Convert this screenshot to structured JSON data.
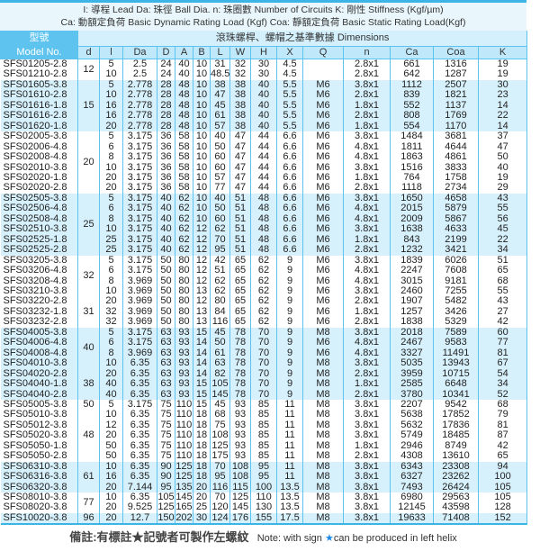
{
  "legend": {
    "line1": "I: 導程  Lead    Da: 珠徑  Ball Dia.   n: 珠圈數  Number of Circuits    K: 剛性  Stiffness (Kgf/µm)",
    "line2": "Ca: 動額定負荷  Basic Dynamic Rating Load (Kgf)    Coa: 靜額定負荷  Basic Static Rating Load(Kgf)"
  },
  "header": {
    "model_zh": "型號",
    "model_en": "Model No.",
    "dimensions": "滾珠螺桿、螺帽之基準數據  Dimensions",
    "columns": [
      "d",
      "l",
      "Da",
      "D",
      "A",
      "B",
      "L",
      "W",
      "H",
      "X",
      "Q",
      "n",
      "Ca",
      "Coa",
      "K"
    ]
  },
  "colors": {
    "border": "#5cc3ee",
    "highlight": "#d7f1fc",
    "model_header": "#5ec4ef"
  },
  "groups": [
    {
      "d": "12",
      "highlight": false,
      "rows": [
        [
          "SFS01205-2.8",
          "5",
          "2.5",
          "24",
          "40",
          "10",
          "31",
          "32",
          "30",
          "4.5",
          "",
          "2.8x1",
          "661",
          "1316",
          "19"
        ],
        [
          "SFS01210-2.8",
          "10",
          "2.5",
          "24",
          "40",
          "10",
          "48.5",
          "32",
          "30",
          "4.5",
          "",
          "2.8x1",
          "642",
          "1287",
          "19"
        ]
      ]
    },
    {
      "d": "15",
      "highlight": true,
      "rows": [
        [
          "SFS01605-3.8",
          "5",
          "2.778",
          "28",
          "48",
          "10",
          "38",
          "38",
          "40",
          "5.5",
          "M6",
          "3.8x1",
          "1112",
          "2507",
          "30"
        ],
        [
          "SFS01610-2.8",
          "10",
          "2.778",
          "28",
          "48",
          "10",
          "47",
          "38",
          "40",
          "5.5",
          "M6",
          "2.8x1",
          "839",
          "1821",
          "23"
        ],
        [
          "SFS01616-1.8",
          "16",
          "2.778",
          "28",
          "48",
          "10",
          "45",
          "38",
          "40",
          "5.5",
          "M6",
          "1.8x1",
          "552",
          "1137",
          "14"
        ],
        [
          "SFS01616-2.8",
          "16",
          "2.778",
          "28",
          "48",
          "10",
          "61",
          "38",
          "40",
          "5.5",
          "M6",
          "2.8x1",
          "808",
          "1769",
          "22"
        ],
        [
          "SFS01620-1.8",
          "20",
          "2.778",
          "28",
          "48",
          "10",
          "57",
          "38",
          "40",
          "5.5",
          "M6",
          "1.8x1",
          "554",
          "1170",
          "14"
        ]
      ]
    },
    {
      "d": "20",
      "highlight": false,
      "rows": [
        [
          "SFS02005-3.8",
          "5",
          "3.175",
          "36",
          "58",
          "10",
          "40",
          "47",
          "44",
          "6.6",
          "M6",
          "3.8x1",
          "1484",
          "3681",
          "37"
        ],
        [
          "SFS02006-4.8",
          "6",
          "3.175",
          "36",
          "58",
          "10",
          "50",
          "47",
          "44",
          "6.6",
          "M6",
          "4.8x1",
          "1811",
          "4644",
          "47"
        ],
        [
          "SFS02008-4.8",
          "8",
          "3.175",
          "36",
          "58",
          "10",
          "60",
          "47",
          "44",
          "6.6",
          "M6",
          "4.8x1",
          "1863",
          "4861",
          "50"
        ],
        [
          "SFS02010-3.8",
          "10",
          "3.175",
          "36",
          "58",
          "10",
          "60",
          "47",
          "44",
          "6.6",
          "M6",
          "3.8x1",
          "1516",
          "3833",
          "40"
        ],
        [
          "SFS02020-1.8",
          "20",
          "3.175",
          "36",
          "58",
          "10",
          "57",
          "47",
          "44",
          "6.6",
          "M6",
          "1.8x1",
          "764",
          "1758",
          "19"
        ],
        [
          "SFS02020-2.8",
          "20",
          "3.175",
          "36",
          "58",
          "10",
          "77",
          "47",
          "44",
          "6.6",
          "M6",
          "2.8x1",
          "1118",
          "2734",
          "29"
        ]
      ]
    },
    {
      "d": "25",
      "highlight": true,
      "rows": [
        [
          "SFS02505-3.8",
          "5",
          "3.175",
          "40",
          "62",
          "10",
          "40",
          "51",
          "48",
          "6.6",
          "M6",
          "3.8x1",
          "1650",
          "4658",
          "43"
        ],
        [
          "SFS02506-4.8",
          "6",
          "3.175",
          "40",
          "62",
          "10",
          "50",
          "51",
          "48",
          "6.6",
          "M6",
          "4.8x1",
          "2015",
          "5879",
          "55"
        ],
        [
          "SFS02508-4.8",
          "8",
          "3.175",
          "40",
          "62",
          "10",
          "60",
          "51",
          "48",
          "6.6",
          "M6",
          "4.8x1",
          "2009",
          "5867",
          "56"
        ],
        [
          "SFS02510-3.8",
          "10",
          "3.175",
          "40",
          "62",
          "12",
          "62",
          "51",
          "48",
          "6.6",
          "M6",
          "3.8x1",
          "1638",
          "4633",
          "45"
        ],
        [
          "SFS02525-1.8",
          "25",
          "3.175",
          "40",
          "62",
          "12",
          "70",
          "51",
          "48",
          "6.6",
          "M6",
          "1.8x1",
          "843",
          "2199",
          "22"
        ],
        [
          "SFS02525-2.8",
          "25",
          "3.175",
          "40",
          "62",
          "12",
          "95",
          "51",
          "48",
          "6.6",
          "M6",
          "2.8x1",
          "1232",
          "3421",
          "34"
        ]
      ]
    },
    {
      "d": "32",
      "highlight": false,
      "rows": [
        [
          "SFS03205-3.8",
          "5",
          "3.175",
          "50",
          "80",
          "12",
          "42",
          "65",
          "62",
          "9",
          "M6",
          "3.8x1",
          "1839",
          "6026",
          "51"
        ],
        [
          "SFS03206-4.8",
          "6",
          "3.175",
          "50",
          "80",
          "12",
          "51",
          "65",
          "62",
          "9",
          "M6",
          "4.8x1",
          "2247",
          "7608",
          "65"
        ],
        [
          "SFS03208-4.8",
          "8",
          "3.969",
          "50",
          "80",
          "12",
          "62",
          "65",
          "62",
          "9",
          "M6",
          "4.8x1",
          "3015",
          "9181",
          "68"
        ],
        [
          "SFS03210-3.8",
          "10",
          "3.969",
          "50",
          "80",
          "13",
          "62",
          "65",
          "62",
          "9",
          "M6",
          "3.8x1",
          "2460",
          "7255",
          "55"
        ]
      ]
    },
    {
      "d": "31",
      "highlight": false,
      "rows": [
        [
          "SFS03220-2.8",
          "20",
          "3.969",
          "50",
          "80",
          "12",
          "80",
          "65",
          "62",
          "9",
          "M6",
          "2.8x1",
          "1907",
          "5482",
          "43"
        ],
        [
          "SFS03232-1.8",
          "32",
          "3.969",
          "50",
          "80",
          "13",
          "84",
          "65",
          "62",
          "9",
          "M6",
          "1.8x1",
          "1257",
          "3426",
          "27"
        ],
        [
          "SFS03232-2.8",
          "32",
          "3.969",
          "50",
          "80",
          "13",
          "116",
          "65",
          "62",
          "9",
          "M6",
          "2.8x1",
          "1838",
          "5329",
          "42"
        ]
      ]
    },
    {
      "d": "40",
      "highlight": true,
      "rows": [
        [
          "SFS04005-3.8",
          "5",
          "3.175",
          "63",
          "93",
          "15",
          "45",
          "78",
          "70",
          "9",
          "M8",
          "3.8x1",
          "2018",
          "7589",
          "60"
        ],
        [
          "SFS04006-4.8",
          "6",
          "3.175",
          "63",
          "93",
          "14",
          "50",
          "78",
          "70",
          "9",
          "M6",
          "4.8x1",
          "2467",
          "9583",
          "77"
        ],
        [
          "SFS04008-4.8",
          "8",
          "3.969",
          "63",
          "93",
          "14",
          "61",
          "78",
          "70",
          "9",
          "M6",
          "4.8x1",
          "3327",
          "11491",
          "81"
        ],
        [
          "SFS04010-3.8",
          "10",
          "6.35",
          "63",
          "93",
          "14",
          "63",
          "78",
          "70",
          "9",
          "M8",
          "3.8x1",
          "5035",
          "13943",
          "67"
        ]
      ]
    },
    {
      "d": "38",
      "highlight": true,
      "rows": [
        [
          "SFS04020-2.8",
          "20",
          "6.35",
          "63",
          "93",
          "14",
          "82",
          "78",
          "70",
          "9",
          "M8",
          "2.8x1",
          "3959",
          "10715",
          "54"
        ],
        [
          "SFS04040-1.8",
          "40",
          "6.35",
          "63",
          "93",
          "15",
          "105",
          "78",
          "70",
          "9",
          "M8",
          "1.8x1",
          "2585",
          "6648",
          "34"
        ],
        [
          "SFS04040-2.8",
          "40",
          "6.35",
          "63",
          "93",
          "15",
          "145",
          "78",
          "70",
          "9",
          "M8",
          "2.8x1",
          "3780",
          "10341",
          "52"
        ]
      ]
    },
    {
      "d": "50",
      "highlight": false,
      "rows": [
        [
          "SFS05005-3.8",
          "5",
          "3.175",
          "75",
          "110",
          "15",
          "45",
          "93",
          "85",
          "11",
          "M8",
          "3.8x1",
          "2207",
          "9542",
          "68"
        ]
      ]
    },
    {
      "d": "48",
      "highlight": false,
      "rows": [
        [
          "SFS05010-3.8",
          "10",
          "6.35",
          "75",
          "110",
          "18",
          "68",
          "93",
          "85",
          "11",
          "M8",
          "3.8x1",
          "5638",
          "17852",
          "79"
        ],
        [
          "SFS05012-3.8",
          "12",
          "6.35",
          "75",
          "110",
          "18",
          "75",
          "93",
          "85",
          "11",
          "M8",
          "3.8x1",
          "5632",
          "17836",
          "81"
        ],
        [
          "SFS05020-3.8",
          "20",
          "6.35",
          "75",
          "110",
          "18",
          "108",
          "93",
          "85",
          "11",
          "M8",
          "3.8x1",
          "5749",
          "18485",
          "87"
        ],
        [
          "SFS05050-1.8",
          "50",
          "6.35",
          "75",
          "110",
          "18",
          "125",
          "93",
          "85",
          "11",
          "M8",
          "1.8x1",
          "2946",
          "8749",
          "42"
        ],
        [
          "SFS05050-2.8",
          "50",
          "6.35",
          "75",
          "110",
          "18",
          "175",
          "93",
          "85",
          "11",
          "M8",
          "2.8x1",
          "4308",
          "13610",
          "65"
        ]
      ]
    },
    {
      "d": "61",
      "highlight": true,
      "rows": [
        [
          "SFS06310-3.8",
          "10",
          "6.35",
          "90",
          "125",
          "18",
          "70",
          "108",
          "95",
          "11",
          "M8",
          "3.8x1",
          "6343",
          "23308",
          "94"
        ],
        [
          "SFS06316-3.8",
          "16",
          "6.35",
          "90",
          "125",
          "18",
          "95",
          "108",
          "95",
          "11",
          "M8",
          "3.8x1",
          "6327",
          "23262",
          "100"
        ],
        [
          "SFS06320-3.8",
          "20",
          "7.144",
          "95",
          "135",
          "20",
          "116",
          "115",
          "100",
          "13.5",
          "M8",
          "3.8x1",
          "7493",
          "26424",
          "105"
        ]
      ]
    },
    {
      "d": "77",
      "highlight": false,
      "rows": [
        [
          "SFS08010-3.8",
          "10",
          "6.35",
          "105",
          "145",
          "20",
          "70",
          "125",
          "110",
          "13.5",
          "M8",
          "3.8x1",
          "6980",
          "29563",
          "105"
        ],
        [
          "SFS08020-3.8",
          "20",
          "9.525",
          "125",
          "165",
          "25",
          "120",
          "145",
          "130",
          "13.5",
          "M8",
          "3.8x1",
          "12145",
          "43598",
          "128"
        ]
      ]
    },
    {
      "d": "96",
      "highlight": true,
      "rows": [
        [
          "SFS10020-3.8",
          "20",
          "12.7",
          "150",
          "202",
          "30",
          "124",
          "176",
          "155",
          "17.5",
          "M8",
          "3.8x1",
          "19633",
          "71408",
          "152"
        ]
      ]
    }
  ],
  "footer": {
    "note_zh_prefix": "備註:有標註",
    "note_zh_suffix": "記號者可製作左螺紋",
    "note_en_prefix": "Note: with sign",
    "note_en_suffix": "can be produced in left helix",
    "star_icon": "★"
  }
}
